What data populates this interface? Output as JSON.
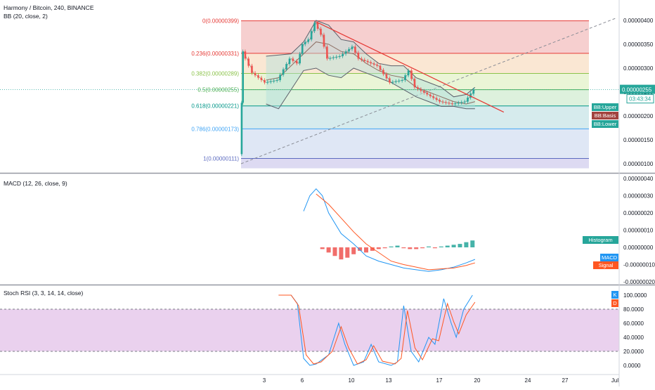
{
  "header": {
    "symbol_title": "Harmony / Bitcoin, 240, BINANCE",
    "bb_legend": "BB (20, close, 2)",
    "macd_legend": "MACD (12, 26, close, 9)",
    "stoch_legend": "Stoch RSI (3, 3, 14, 14, close)"
  },
  "colors": {
    "price_up": "#26a69a",
    "price_down": "#ef5350",
    "bb_line": "#5b5f6a",
    "trendline": "#e53935",
    "macd_line": "#2196f3",
    "signal_line": "#ff5722",
    "hist_pos": "#26a69a",
    "hist_neg": "#ef5350",
    "rsi_band": "#e1bee7",
    "stoch_k": "#2196f3",
    "stoch_d": "#ff5722"
  },
  "chart_data": [
    {
      "type": "candlestick",
      "title": "Harmony / Bitcoin, 240, BINANCE",
      "x_ticks": [
        "3",
        "6",
        "10",
        "13",
        "17",
        "20",
        "24",
        "27",
        "Jul"
      ],
      "y_ticks": [
        "0.00000400",
        "0.00000350",
        "0.00000300",
        "0.00000250",
        "0.00000200",
        "0.00000150",
        "0.00000100"
      ],
      "ylim": [
        7.8e-07,
        4.2e-06
      ],
      "last_price": {
        "value": "0.00000255",
        "countdown": "03:43:34"
      },
      "side_labels": [
        "BB:Upper",
        "BB:Basis",
        "BB:Lower"
      ],
      "fibonacci": [
        {
          "ratio": 0,
          "price": 3.99e-06,
          "label": "0(0.00000399)",
          "color": "#e53935"
        },
        {
          "ratio": 0.236,
          "price": 3.31e-06,
          "label": "0.236(0.00000331)",
          "color": "#e53935"
        },
        {
          "ratio": 0.382,
          "price": 2.89e-06,
          "label": "0.382(0.00000289)",
          "color": "#8bc34a"
        },
        {
          "ratio": 0.5,
          "price": 2.55e-06,
          "label": "0.5(0.00000255)",
          "color": "#4caf50"
        },
        {
          "ratio": 0.618,
          "price": 2.21e-06,
          "label": "0.618(0.00000221)",
          "color": "#009688"
        },
        {
          "ratio": 0.786,
          "price": 1.73e-06,
          "label": "0.786(0.00000173)",
          "color": "#42a5f5"
        },
        {
          "ratio": 1,
          "price": 1.11e-06,
          "label": "1(0.00000111)",
          "color": "#5c6bc0"
        }
      ],
      "price_path": [
        [
          0,
          1.2
        ],
        [
          0.2,
          3.35
        ],
        [
          1,
          2.9
        ],
        [
          2,
          2.7
        ],
        [
          3,
          2.75
        ],
        [
          4,
          3.2
        ],
        [
          4.6,
          3.1
        ],
        [
          5,
          3.5
        ],
        [
          5.5,
          3.6
        ],
        [
          6,
          3.95
        ],
        [
          6.5,
          3.7
        ],
        [
          7,
          3.2
        ],
        [
          8,
          3.25
        ],
        [
          9,
          3.45
        ],
        [
          9.5,
          3.2
        ],
        [
          10,
          3.15
        ],
        [
          11,
          3.05
        ],
        [
          12,
          2.7
        ],
        [
          13,
          2.75
        ],
        [
          13.5,
          2.95
        ],
        [
          14,
          2.6
        ],
        [
          15,
          2.45
        ],
        [
          16,
          2.3
        ],
        [
          17,
          2.25
        ],
        [
          18,
          2.3
        ],
        [
          18.7,
          2.55
        ]
      ],
      "bb_upper": [
        [
          2,
          3.25
        ],
        [
          4,
          3.3
        ],
        [
          5,
          3.55
        ],
        [
          6,
          4.0
        ],
        [
          7,
          3.9
        ],
        [
          8,
          3.6
        ],
        [
          9,
          3.55
        ],
        [
          10,
          3.3
        ],
        [
          11,
          3.1
        ],
        [
          12,
          3.05
        ],
        [
          13,
          3.05
        ],
        [
          14,
          2.8
        ],
        [
          15,
          2.7
        ],
        [
          16,
          2.6
        ],
        [
          17,
          2.4
        ],
        [
          18,
          2.45
        ],
        [
          18.7,
          2.6
        ]
      ],
      "bb_basis": [
        [
          2,
          2.75
        ],
        [
          3,
          2.8
        ],
        [
          4,
          3.05
        ],
        [
          5,
          3.3
        ],
        [
          6,
          3.55
        ],
        [
          7,
          3.5
        ],
        [
          8,
          3.35
        ],
        [
          9,
          3.3
        ],
        [
          10,
          3.1
        ],
        [
          11,
          2.95
        ],
        [
          12,
          2.85
        ],
        [
          13,
          2.8
        ],
        [
          14,
          2.6
        ],
        [
          15,
          2.5
        ],
        [
          16,
          2.4
        ],
        [
          17,
          2.3
        ],
        [
          18,
          2.25
        ],
        [
          18.7,
          2.3
        ]
      ],
      "bb_lower": [
        [
          2,
          2.25
        ],
        [
          3,
          2.15
        ],
        [
          4,
          2.55
        ],
        [
          5,
          2.95
        ],
        [
          6,
          3.0
        ],
        [
          7,
          2.85
        ],
        [
          8,
          2.8
        ],
        [
          9,
          3.0
        ],
        [
          10,
          2.9
        ],
        [
          11,
          2.8
        ],
        [
          12,
          2.7
        ],
        [
          13,
          2.55
        ],
        [
          14,
          2.4
        ],
        [
          15,
          2.3
        ],
        [
          16,
          2.2
        ],
        [
          17,
          2.2
        ],
        [
          18,
          2.15
        ],
        [
          18.7,
          2.15
        ]
      ],
      "trendline": [
        [
          6,
          3.97
        ],
        [
          21,
          2.08
        ]
      ],
      "diagonal_dashed": [
        [
          0,
          1.0
        ],
        [
          30,
          4.05
        ]
      ]
    },
    {
      "type": "line",
      "title": "MACD (12, 26, close, 9)",
      "y_ticks": [
        "0.00000040",
        "0.00000030",
        "0.00000020",
        "0.00000010",
        "0.00000000",
        "-0.00000010",
        "-0.00000020"
      ],
      "ylim": [
        -2.2e-07,
        4.2e-07
      ],
      "side_labels": [
        "Histogram",
        "MACD",
        "Signal"
      ],
      "series": [
        {
          "key": "macd",
          "points": [
            [
              5,
              0.21
            ],
            [
              5.5,
              0.3
            ],
            [
              6,
              0.34
            ],
            [
              6.5,
              0.3
            ],
            [
              7,
              0.2
            ],
            [
              8,
              0.08
            ],
            [
              9,
              0.02
            ],
            [
              10,
              -0.05
            ],
            [
              11,
              -0.08
            ],
            [
              12,
              -0.1
            ],
            [
              13,
              -0.12
            ],
            [
              14,
              -0.13
            ],
            [
              15,
              -0.14
            ],
            [
              16,
              -0.13
            ],
            [
              17,
              -0.115
            ],
            [
              18,
              -0.09
            ],
            [
              18.7,
              -0.07
            ]
          ]
        },
        {
          "key": "signal",
          "points": [
            [
              6,
              0.31
            ],
            [
              7,
              0.25
            ],
            [
              8,
              0.17
            ],
            [
              9,
              0.09
            ],
            [
              10,
              0.02
            ],
            [
              11,
              -0.03
            ],
            [
              12,
              -0.08
            ],
            [
              13,
              -0.1
            ],
            [
              14,
              -0.115
            ],
            [
              15,
              -0.13
            ],
            [
              16,
              -0.125
            ],
            [
              17,
              -0.12
            ],
            [
              18,
              -0.105
            ],
            [
              18.7,
              -0.09
            ]
          ]
        }
      ],
      "histogram": [
        [
          6.5,
          -0.01
        ],
        [
          7,
          -0.03
        ],
        [
          7.5,
          -0.05
        ],
        [
          8,
          -0.07
        ],
        [
          8.5,
          -0.06
        ],
        [
          9,
          -0.04
        ],
        [
          9.5,
          -0.02
        ],
        [
          10,
          -0.03
        ],
        [
          10.5,
          -0.02
        ],
        [
          11,
          -0.01
        ],
        [
          11.5,
          -0.005
        ],
        [
          12,
          0.005
        ],
        [
          12.5,
          0.01
        ],
        [
          13,
          -0.005
        ],
        [
          13.5,
          -0.01
        ],
        [
          14,
          -0.01
        ],
        [
          14.5,
          -0.005
        ],
        [
          15,
          0.005
        ],
        [
          15.5,
          -0.005
        ],
        [
          16,
          0.005
        ],
        [
          16.5,
          0.01
        ],
        [
          17,
          0.015
        ],
        [
          17.5,
          0.02
        ],
        [
          18,
          0.03
        ],
        [
          18.5,
          0.04
        ]
      ]
    },
    {
      "type": "line",
      "title": "Stoch RSI (3, 3, 14, 14, close)",
      "y_ticks": [
        "100.0000",
        "80.0000",
        "60.0000",
        "40.0000",
        "20.0000",
        "0.0000"
      ],
      "ylim": [
        -8,
        105
      ],
      "band": [
        20,
        80
      ],
      "side_labels": [
        "K",
        "D"
      ],
      "series": [
        {
          "key": "k",
          "points": [
            [
              3,
              100
            ],
            [
              4,
              100
            ],
            [
              4.5,
              88
            ],
            [
              5,
              10
            ],
            [
              5.5,
              0
            ],
            [
              6,
              2
            ],
            [
              7,
              15
            ],
            [
              7.8,
              60
            ],
            [
              8.3,
              30
            ],
            [
              9,
              0
            ],
            [
              9.8,
              5
            ],
            [
              10.4,
              30
            ],
            [
              11,
              5
            ],
            [
              12,
              0
            ],
            [
              12.5,
              5
            ],
            [
              13,
              85
            ],
            [
              13.6,
              20
            ],
            [
              14.2,
              5
            ],
            [
              15,
              40
            ],
            [
              15.5,
              30
            ],
            [
              16.2,
              95
            ],
            [
              16.8,
              60
            ],
            [
              17.2,
              40
            ],
            [
              17.8,
              80
            ],
            [
              18.5,
              100
            ]
          ]
        },
        {
          "key": "d",
          "points": [
            [
              3,
              100
            ],
            [
              4,
              100
            ],
            [
              4.6,
              85
            ],
            [
              5.2,
              15
            ],
            [
              5.8,
              2
            ],
            [
              6.4,
              5
            ],
            [
              7.3,
              20
            ],
            [
              8,
              55
            ],
            [
              8.6,
              25
            ],
            [
              9.3,
              2
            ],
            [
              10,
              8
            ],
            [
              10.6,
              28
            ],
            [
              11.3,
              6
            ],
            [
              12.3,
              2
            ],
            [
              12.8,
              10
            ],
            [
              13.3,
              78
            ],
            [
              13.9,
              25
            ],
            [
              14.5,
              8
            ],
            [
              15.3,
              38
            ],
            [
              15.8,
              35
            ],
            [
              16.5,
              88
            ],
            [
              17,
              62
            ],
            [
              17.4,
              45
            ],
            [
              18,
              72
            ],
            [
              18.7,
              90
            ]
          ]
        }
      ]
    }
  ]
}
